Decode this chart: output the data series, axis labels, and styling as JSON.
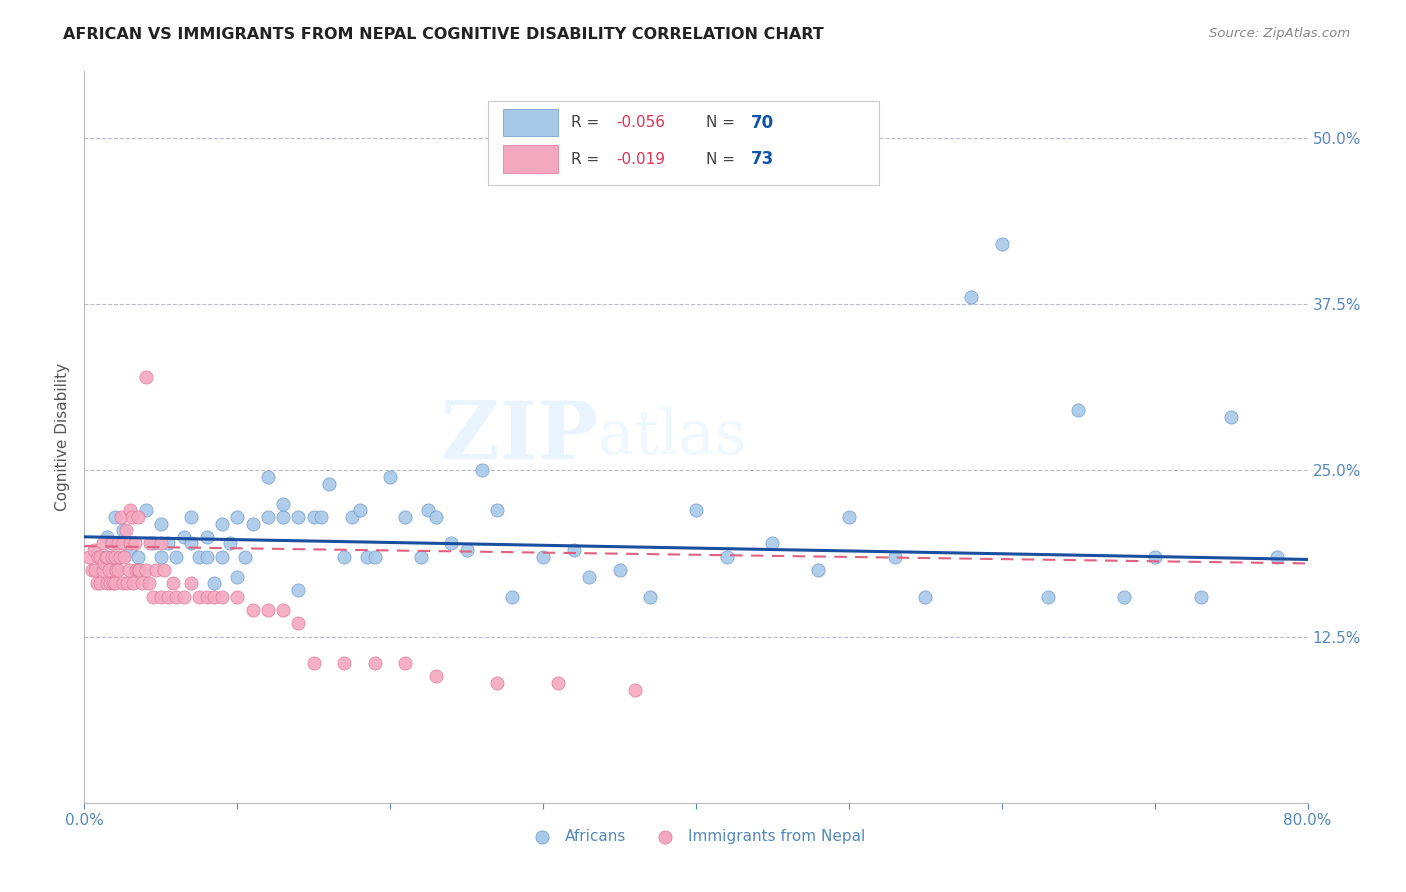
{
  "title": "AFRICAN VS IMMIGRANTS FROM NEPAL COGNITIVE DISABILITY CORRELATION CHART",
  "source": "Source: ZipAtlas.com",
  "ylabel": "Cognitive Disability",
  "xlim": [
    0.0,
    0.8
  ],
  "ylim": [
    0.0,
    0.55
  ],
  "ytick_positions": [
    0.0,
    0.125,
    0.25,
    0.375,
    0.5
  ],
  "ytick_labels": [
    "",
    "12.5%",
    "25.0%",
    "37.5%",
    "50.0%"
  ],
  "legend_r1": "-0.056",
  "legend_n1": "70",
  "legend_r2": "-0.019",
  "legend_n2": "73",
  "color_african": "#A8C8E8",
  "color_nepal": "#F4A8C0",
  "color_trend_african": "#1A4FA0",
  "color_trend_nepal": "#E06080",
  "watermark_zip": "ZIP",
  "watermark_atlas": "atlas",
  "background_color": "#FFFFFF",
  "grid_color": "#BBBBCC",
  "trend_african_x0": 0.0,
  "trend_african_y0": 0.2,
  "trend_african_x1": 0.8,
  "trend_african_y1": 0.183,
  "trend_nepal_x0": 0.0,
  "trend_nepal_y0": 0.193,
  "trend_nepal_x1": 0.8,
  "trend_nepal_y1": 0.18,
  "africans_x": [
    0.015,
    0.02,
    0.025,
    0.03,
    0.035,
    0.04,
    0.045,
    0.05,
    0.05,
    0.055,
    0.06,
    0.065,
    0.07,
    0.07,
    0.075,
    0.08,
    0.08,
    0.085,
    0.09,
    0.09,
    0.095,
    0.1,
    0.1,
    0.105,
    0.11,
    0.12,
    0.12,
    0.13,
    0.13,
    0.14,
    0.14,
    0.15,
    0.155,
    0.16,
    0.17,
    0.175,
    0.18,
    0.185,
    0.19,
    0.2,
    0.21,
    0.22,
    0.225,
    0.23,
    0.24,
    0.25,
    0.26,
    0.27,
    0.28,
    0.3,
    0.32,
    0.33,
    0.35,
    0.37,
    0.4,
    0.42,
    0.45,
    0.48,
    0.5,
    0.53,
    0.55,
    0.58,
    0.6,
    0.63,
    0.65,
    0.68,
    0.7,
    0.73,
    0.75,
    0.78
  ],
  "africans_y": [
    0.2,
    0.215,
    0.205,
    0.19,
    0.185,
    0.22,
    0.195,
    0.21,
    0.185,
    0.195,
    0.185,
    0.2,
    0.195,
    0.215,
    0.185,
    0.185,
    0.2,
    0.165,
    0.185,
    0.21,
    0.195,
    0.17,
    0.215,
    0.185,
    0.21,
    0.245,
    0.215,
    0.215,
    0.225,
    0.215,
    0.16,
    0.215,
    0.215,
    0.24,
    0.185,
    0.215,
    0.22,
    0.185,
    0.185,
    0.245,
    0.215,
    0.185,
    0.22,
    0.215,
    0.195,
    0.19,
    0.25,
    0.22,
    0.155,
    0.185,
    0.19,
    0.17,
    0.175,
    0.155,
    0.22,
    0.185,
    0.195,
    0.175,
    0.215,
    0.185,
    0.155,
    0.38,
    0.42,
    0.155,
    0.295,
    0.155,
    0.185,
    0.155,
    0.29,
    0.185
  ],
  "nepal_x": [
    0.003,
    0.005,
    0.006,
    0.007,
    0.008,
    0.009,
    0.01,
    0.01,
    0.012,
    0.012,
    0.013,
    0.014,
    0.015,
    0.015,
    0.016,
    0.017,
    0.018,
    0.018,
    0.019,
    0.02,
    0.02,
    0.021,
    0.022,
    0.022,
    0.023,
    0.024,
    0.025,
    0.025,
    0.026,
    0.027,
    0.028,
    0.029,
    0.03,
    0.03,
    0.031,
    0.032,
    0.033,
    0.034,
    0.035,
    0.035,
    0.036,
    0.038,
    0.04,
    0.04,
    0.042,
    0.043,
    0.045,
    0.047,
    0.05,
    0.05,
    0.052,
    0.055,
    0.058,
    0.06,
    0.065,
    0.07,
    0.075,
    0.08,
    0.085,
    0.09,
    0.1,
    0.11,
    0.12,
    0.13,
    0.14,
    0.15,
    0.17,
    0.19,
    0.21,
    0.23,
    0.27,
    0.31,
    0.36
  ],
  "nepal_y": [
    0.185,
    0.175,
    0.19,
    0.175,
    0.165,
    0.185,
    0.165,
    0.185,
    0.175,
    0.195,
    0.18,
    0.185,
    0.165,
    0.185,
    0.175,
    0.165,
    0.195,
    0.185,
    0.165,
    0.165,
    0.185,
    0.175,
    0.175,
    0.195,
    0.185,
    0.215,
    0.195,
    0.165,
    0.185,
    0.205,
    0.165,
    0.175,
    0.22,
    0.195,
    0.215,
    0.165,
    0.195,
    0.175,
    0.175,
    0.215,
    0.175,
    0.165,
    0.32,
    0.175,
    0.165,
    0.195,
    0.155,
    0.175,
    0.155,
    0.195,
    0.175,
    0.155,
    0.165,
    0.155,
    0.155,
    0.165,
    0.155,
    0.155,
    0.155,
    0.155,
    0.155,
    0.145,
    0.145,
    0.145,
    0.135,
    0.105,
    0.105,
    0.105,
    0.105,
    0.095,
    0.09,
    0.09,
    0.085
  ]
}
